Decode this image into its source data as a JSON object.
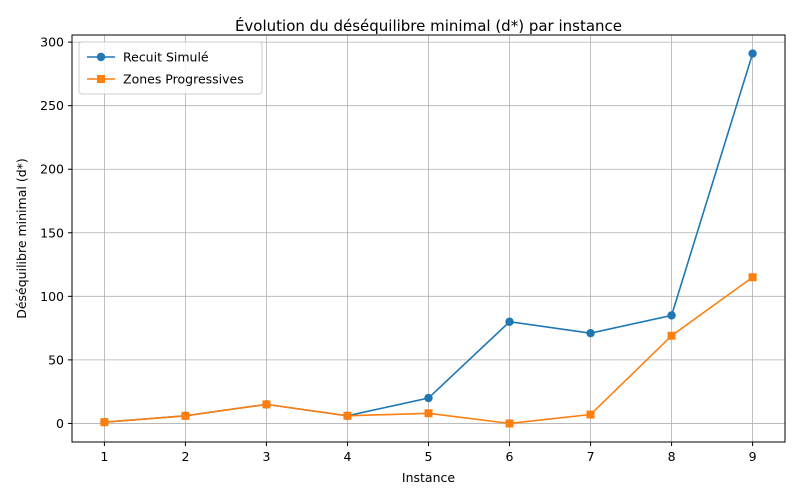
{
  "chart_data": {
    "type": "line",
    "title": "Évolution du déséquilibre minimal (d*) par instance",
    "xlabel": "Instance",
    "ylabel": "Déséquilibre minimal (d*)",
    "x": [
      1,
      2,
      3,
      4,
      5,
      6,
      7,
      8,
      9
    ],
    "xticks": [
      "1",
      "2",
      "3",
      "4",
      "5",
      "6",
      "7",
      "8",
      "9"
    ],
    "xlim": [
      0.6,
      9.4
    ],
    "yticks": [
      0,
      50,
      100,
      150,
      200,
      250,
      300
    ],
    "ylim": [
      -14.6,
      305.6
    ],
    "grid": true,
    "legend_position": "top-left",
    "series": [
      {
        "name": "Recuit Simulé",
        "color": "#1f77b4",
        "marker": "circle",
        "values": [
          1,
          6,
          15,
          6,
          20,
          80,
          71,
          85,
          291
        ]
      },
      {
        "name": "Zones Progressives",
        "color": "#ff7f0e",
        "marker": "square",
        "values": [
          1,
          6,
          15,
          6,
          8,
          0,
          7,
          69,
          115
        ]
      }
    ]
  }
}
